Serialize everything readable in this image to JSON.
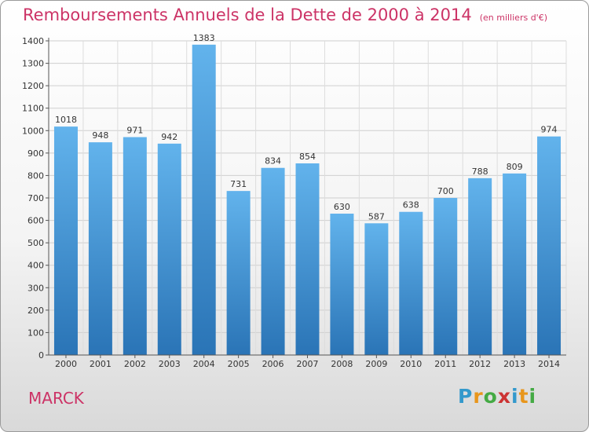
{
  "title": "Remboursements Annuels de la Dette de 2000 à 2014",
  "unit_note": "(en milliers d'€)",
  "city": "MARCK",
  "logo": {
    "letters": [
      "P",
      "r",
      "o",
      "x",
      "i",
      "t",
      "i"
    ],
    "colors": [
      "#3399cc",
      "#e8961c",
      "#44aa44",
      "#cc3333",
      "#3399cc",
      "#e8961c",
      "#44aa44"
    ]
  },
  "colors": {
    "title": "#cc3366",
    "bar_top": "#62b3ec",
    "bar_bottom": "#2a74b6"
  },
  "chart_data": {
    "type": "bar",
    "categories": [
      "2000",
      "2001",
      "2002",
      "2003",
      "2004",
      "2005",
      "2006",
      "2007",
      "2008",
      "2009",
      "2010",
      "2011",
      "2012",
      "2013",
      "2014"
    ],
    "values": [
      1018,
      948,
      971,
      942,
      1383,
      731,
      834,
      854,
      630,
      587,
      638,
      700,
      788,
      809,
      974
    ],
    "value_labels": [
      "1018",
      "948",
      "971",
      "942",
      "1383",
      "731",
      "834",
      "854",
      "630",
      "587",
      "638",
      "700",
      "788",
      "809",
      "974"
    ],
    "yticks": [
      "0",
      "100",
      "200",
      "300",
      "400",
      "500",
      "600",
      "700",
      "800",
      "900",
      "1000",
      "1100",
      "1200",
      "1300",
      "1400"
    ],
    "ylim": [
      0,
      1400
    ],
    "grid": true,
    "xlabel": "",
    "ylabel": ""
  }
}
